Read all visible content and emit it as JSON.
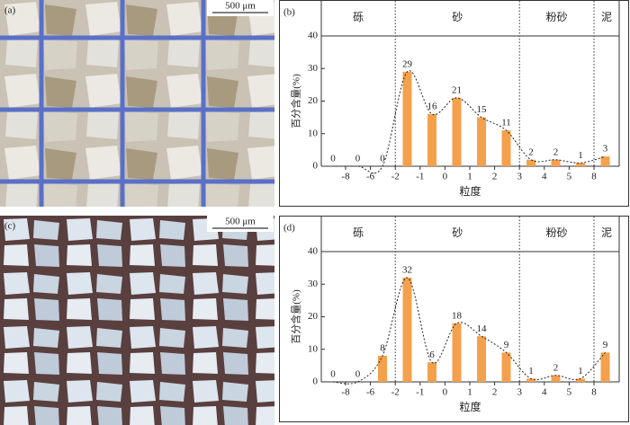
{
  "photos": [
    {
      "label": "(a)",
      "scale": "500 μm"
    },
    {
      "label": "(c)",
      "scale": "500 μm"
    }
  ],
  "chart_data": [
    {
      "type": "bar",
      "panel": "(b)",
      "ylabel": "百分含量(%)",
      "xlabel": "粒度",
      "sections": [
        "砾",
        "砂",
        "粉砂",
        "泥"
      ],
      "boundaries": [
        -8,
        -6,
        -2,
        -1,
        0,
        1,
        2,
        3,
        4,
        5,
        8
      ],
      "values": [
        0,
        0,
        0,
        29,
        16,
        21,
        15,
        11,
        2,
        2,
        1,
        3
      ],
      "color": "#f5a04c",
      "ylim": [
        0,
        40
      ],
      "yticks": [
        0,
        10,
        20,
        30,
        40
      ]
    },
    {
      "type": "bar",
      "panel": "(d)",
      "ylabel": "百分含量(%)",
      "xlabel": "粒度",
      "sections": [
        "砾",
        "砂",
        "粉砂",
        "泥"
      ],
      "boundaries": [
        -8,
        -6,
        -2,
        -1,
        0,
        1,
        2,
        3,
        4,
        5,
        8
      ],
      "values": [
        0,
        0,
        8,
        32,
        6,
        18,
        14,
        9,
        1,
        2,
        1,
        9
      ],
      "color": "#f5a04c",
      "ylim": [
        0,
        40
      ],
      "yticks": [
        0,
        10,
        20,
        30,
        40
      ]
    }
  ]
}
